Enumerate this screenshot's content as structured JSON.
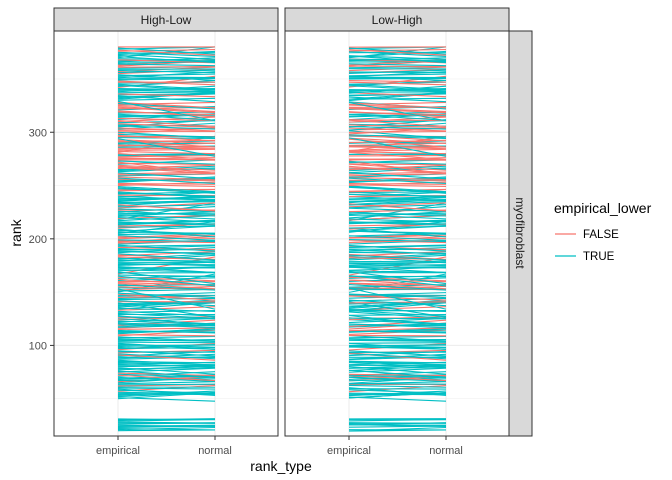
{
  "chart_data": {
    "type": "line",
    "title": "",
    "xlabel": "rank_type",
    "ylabel": "rank",
    "x_categories": [
      "empirical",
      "normal"
    ],
    "y_ticks": [
      100,
      200,
      300
    ],
    "ylim": [
      15,
      395
    ],
    "facet_columns": [
      "High-Low",
      "Low-High"
    ],
    "facet_row": "myofibroblast",
    "legend": {
      "title": "empirical_lower",
      "position": "right",
      "entries": [
        {
          "label": "FALSE",
          "color": "#F8766D"
        },
        {
          "label": "TRUE",
          "color": "#00BFC4"
        }
      ]
    },
    "grid": true,
    "series": [
      {
        "name": "FALSE",
        "color": "#F8766D",
        "n_approx": 110
      },
      {
        "name": "TRUE",
        "color": "#00BFC4",
        "n_approx": 270
      }
    ],
    "rank_range": [
      20,
      380
    ]
  }
}
